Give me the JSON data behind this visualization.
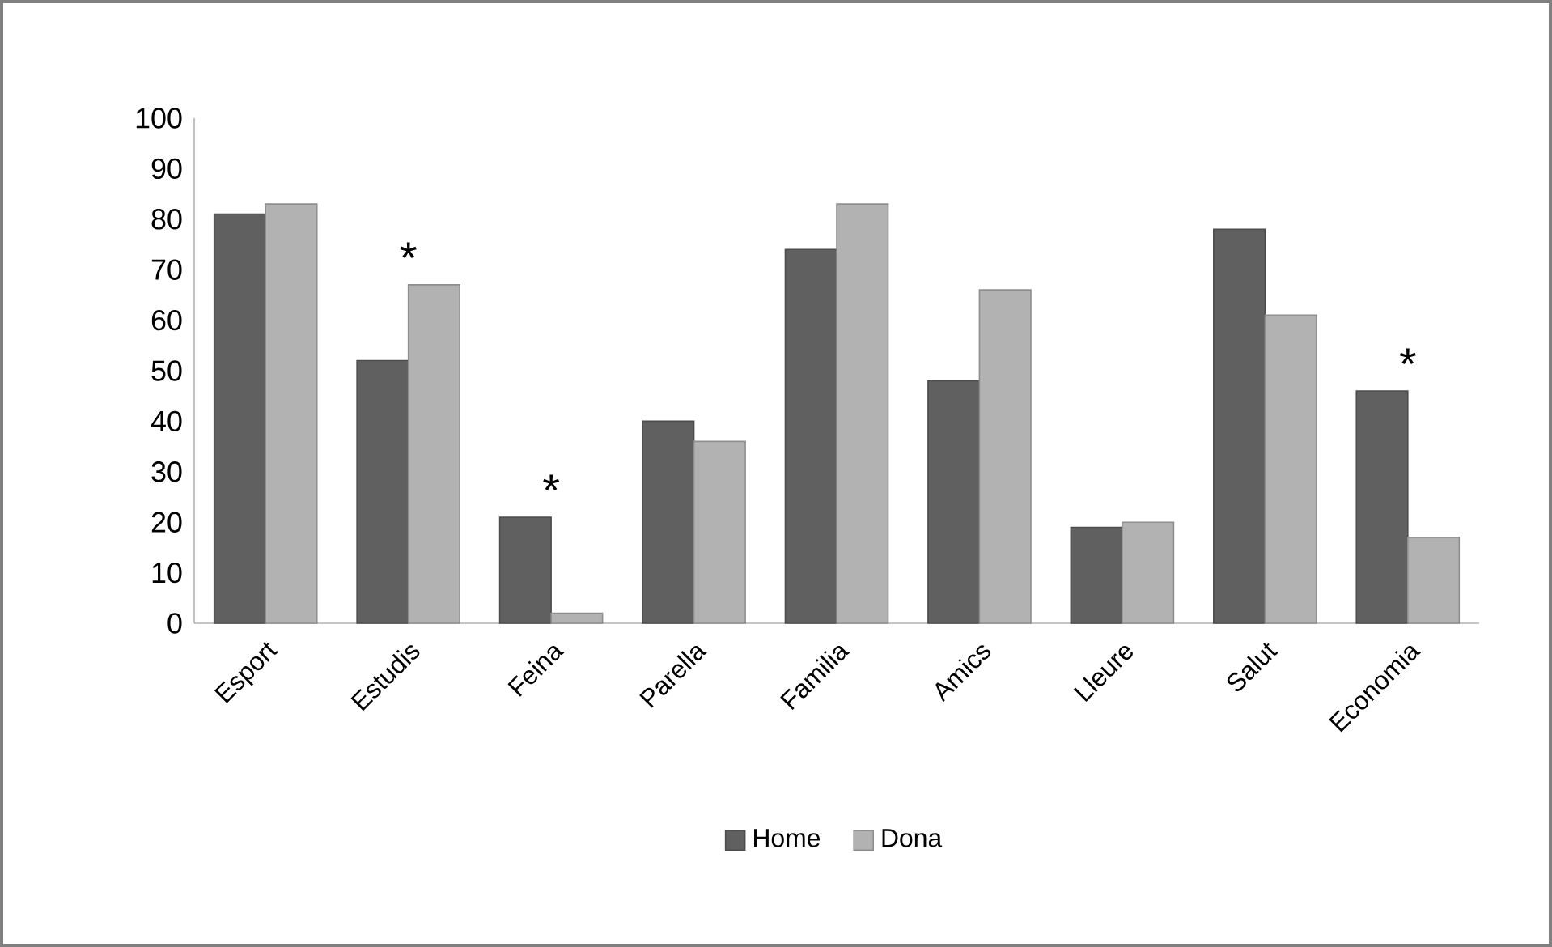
{
  "chart_data": {
    "type": "bar",
    "categories": [
      "Esport",
      "Estudis",
      "Feina",
      "Parella",
      "Familia",
      "Amics",
      "Lleure",
      "Salut",
      "Economia"
    ],
    "series": [
      {
        "name": "Home",
        "color": "#606060",
        "values": [
          81,
          52,
          21,
          40,
          74,
          48,
          19,
          78,
          46
        ]
      },
      {
        "name": "Dona",
        "color": "#b2b2b2",
        "values": [
          83,
          67,
          2,
          36,
          83,
          66,
          20,
          61,
          17
        ]
      }
    ],
    "ylim": [
      0,
      100
    ],
    "yticks": [
      0,
      10,
      20,
      30,
      40,
      50,
      60,
      70,
      80,
      90,
      100
    ],
    "annotations": [
      {
        "text": "*",
        "x": "Estudis",
        "y": 67
      },
      {
        "text": "*",
        "x": "Feina",
        "y": 21
      },
      {
        "text": "*",
        "x": "Economia",
        "y": 46
      }
    ],
    "legend": "bottom",
    "grid": false
  }
}
